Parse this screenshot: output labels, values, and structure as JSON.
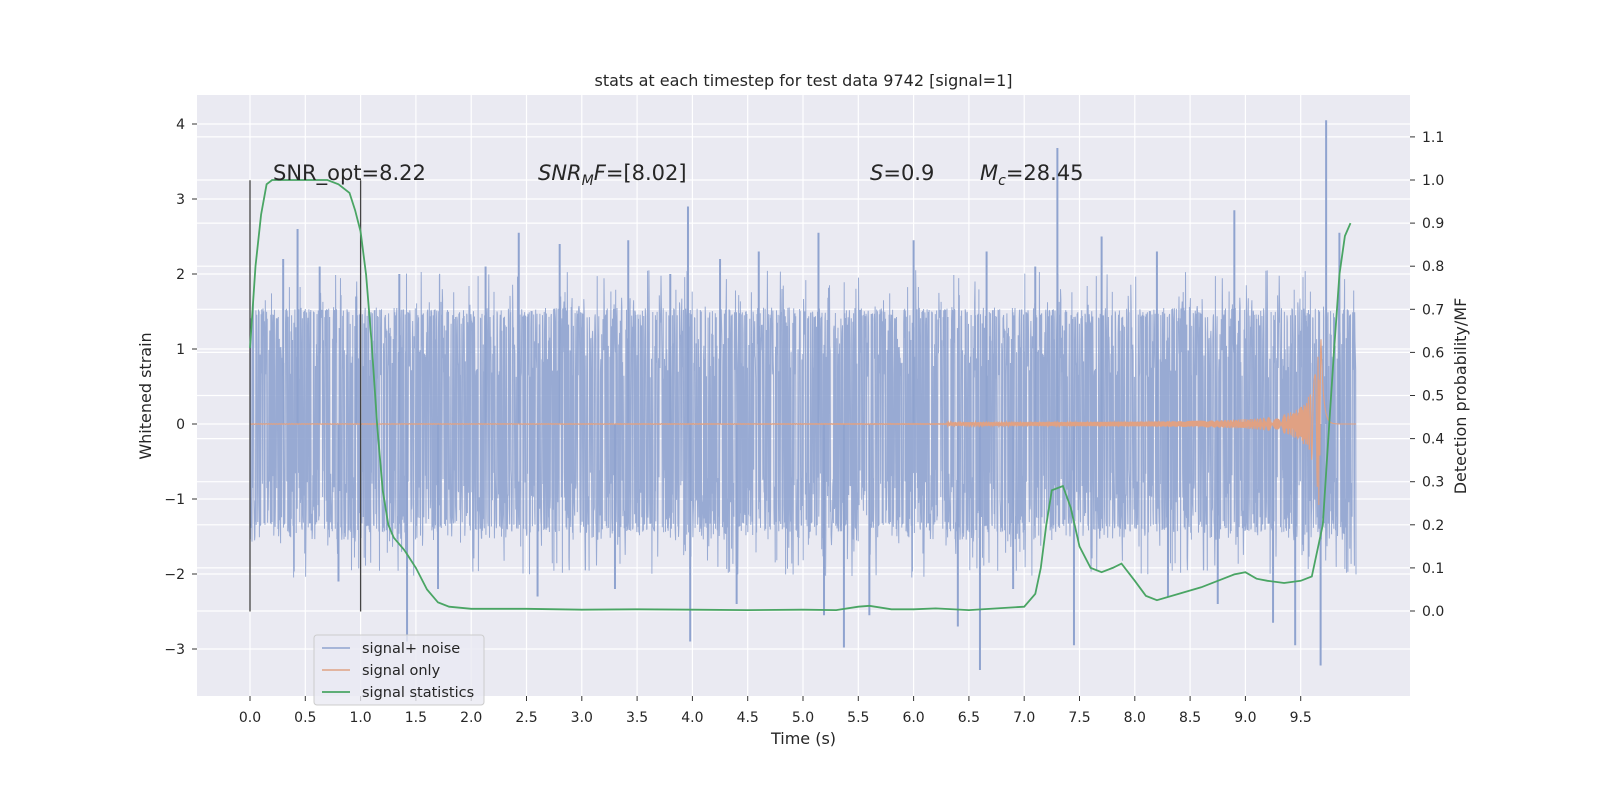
{
  "chart_data": {
    "type": "line",
    "title": "stats at each timestep for test data 9742 [signal=1]",
    "xlabel": "Time (s)",
    "ylabel": "Whitened strain",
    "ylabel_right": "Detection probability/MF",
    "xlim": [
      -0.49,
      10.5
    ],
    "ylim": [
      -3.6,
      4.4
    ],
    "ylim_right": [
      -0.2,
      1.2
    ],
    "x_ticks": [
      "0.0",
      "0.5",
      "1.0",
      "1.5",
      "2.0",
      "2.5",
      "3.0",
      "3.5",
      "4.0",
      "4.5",
      "5.0",
      "5.5",
      "6.0",
      "6.5",
      "7.0",
      "7.5",
      "8.0",
      "8.5",
      "9.0",
      "9.5"
    ],
    "y_ticks": [
      "−3",
      "−2",
      "−1",
      "0",
      "1",
      "2",
      "3",
      "4"
    ],
    "y_right_ticks": [
      "0.0",
      "0.1",
      "0.2",
      "0.3",
      "0.4",
      "0.5",
      "0.6",
      "0.7",
      "0.8",
      "0.9",
      "1.0",
      "1.1"
    ],
    "grid": true,
    "legend_position": "lower-left",
    "annotations": {
      "snr_opt": "SNR_opt=8.22",
      "snr_mf": "=[8.02]",
      "snr_mf_base": "SNR",
      "snr_mf_sub": "M",
      "snr_mf_F": "F",
      "s_val": "=0.9",
      "s_sym": "S",
      "mc_val": "=28.45",
      "mc_sym": "M",
      "mc_sub": "c"
    },
    "window_markers_x": [
      0.0,
      1.0
    ],
    "series": [
      {
        "name": "signal+ noise",
        "color": "#8fa3cf",
        "x_range": [
          0.0,
          10.0
        ],
        "band_upper": 1.55,
        "band_lower": -1.45,
        "spikes": [
          [
            0.3,
            2.2
          ],
          [
            0.43,
            2.6
          ],
          [
            0.63,
            2.1
          ],
          [
            0.96,
            1.7
          ],
          [
            1.35,
            2.0
          ],
          [
            1.42,
            -2.9
          ],
          [
            2.13,
            2.1
          ],
          [
            2.43,
            2.55
          ],
          [
            2.8,
            2.4
          ],
          [
            3.42,
            2.45
          ],
          [
            3.8,
            2.0
          ],
          [
            3.96,
            2.9
          ],
          [
            3.98,
            -2.9
          ],
          [
            4.25,
            2.2
          ],
          [
            4.6,
            2.3
          ],
          [
            5.14,
            2.55
          ],
          [
            5.19,
            -2.55
          ],
          [
            5.37,
            -2.98
          ],
          [
            5.6,
            -2.55
          ],
          [
            6.0,
            2.45
          ],
          [
            6.4,
            -2.7
          ],
          [
            6.6,
            -3.28
          ],
          [
            6.66,
            2.3
          ],
          [
            7.1,
            2.1
          ],
          [
            7.3,
            3.68
          ],
          [
            7.45,
            -2.95
          ],
          [
            7.7,
            2.5
          ],
          [
            8.2,
            2.3
          ],
          [
            8.9,
            2.85
          ],
          [
            9.25,
            -2.65
          ],
          [
            9.45,
            -2.95
          ],
          [
            9.68,
            -3.22
          ],
          [
            9.73,
            4.05
          ],
          [
            9.85,
            2.55
          ],
          [
            0.8,
            -2.1
          ],
          [
            1.7,
            -2.2
          ],
          [
            2.6,
            -2.3
          ],
          [
            3.3,
            -2.2
          ],
          [
            4.4,
            -2.4
          ],
          [
            6.9,
            -2.2
          ],
          [
            8.3,
            -2.3
          ],
          [
            8.75,
            -2.4
          ]
        ]
      },
      {
        "name": "signal only",
        "color": "#e0a183",
        "x_range": [
          0.0,
          10.0
        ],
        "chirp_peak_x": 9.68,
        "chirp_peak_amp": 1.5
      },
      {
        "name": "signal statistics",
        "color": "#4aa564",
        "axis": "right",
        "x": [
          0.0,
          0.05,
          0.1,
          0.15,
          0.2,
          0.3,
          0.5,
          0.7,
          0.8,
          0.9,
          0.95,
          1.0,
          1.05,
          1.1,
          1.15,
          1.2,
          1.25,
          1.3,
          1.4,
          1.5,
          1.6,
          1.7,
          1.8,
          2.0,
          2.5,
          3.0,
          3.5,
          4.0,
          4.5,
          5.0,
          5.3,
          5.5,
          5.6,
          5.8,
          6.0,
          6.2,
          6.5,
          7.0,
          7.1,
          7.15,
          7.2,
          7.25,
          7.35,
          7.42,
          7.5,
          7.6,
          7.7,
          7.8,
          7.88,
          8.0,
          8.1,
          8.2,
          8.4,
          8.6,
          8.8,
          8.9,
          9.0,
          9.1,
          9.2,
          9.35,
          9.5,
          9.6,
          9.7,
          9.75,
          9.8,
          9.85,
          9.9,
          9.95
        ],
        "y": [
          0.61,
          0.8,
          0.92,
          0.99,
          1.0,
          1.0,
          1.0,
          1.0,
          0.99,
          0.97,
          0.93,
          0.88,
          0.78,
          0.62,
          0.43,
          0.28,
          0.2,
          0.17,
          0.14,
          0.1,
          0.05,
          0.02,
          0.01,
          0.005,
          0.005,
          0.003,
          0.004,
          0.003,
          0.002,
          0.003,
          0.002,
          0.01,
          0.012,
          0.004,
          0.004,
          0.006,
          0.002,
          0.01,
          0.04,
          0.1,
          0.2,
          0.28,
          0.29,
          0.24,
          0.15,
          0.1,
          0.09,
          0.1,
          0.11,
          0.07,
          0.035,
          0.025,
          0.04,
          0.055,
          0.075,
          0.085,
          0.09,
          0.075,
          0.07,
          0.065,
          0.07,
          0.08,
          0.2,
          0.4,
          0.6,
          0.78,
          0.87,
          0.9
        ]
      }
    ]
  }
}
